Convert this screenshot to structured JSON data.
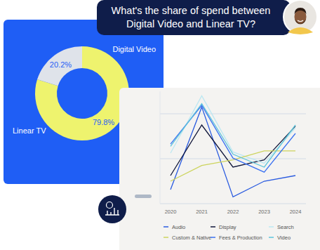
{
  "question": {
    "text_lines": [
      "What's the share of spend between",
      "Digital Video and Linear TV?"
    ]
  },
  "chart_data": [
    {
      "type": "donut",
      "categories": [
        "Digital Video",
        "Linear TV"
      ],
      "values": [
        79.8,
        20.2
      ],
      "value_labels": [
        "79.8%",
        "20.2%"
      ],
      "colors": [
        "#eef36e",
        "#dfe3ea"
      ],
      "data_labels": true
    },
    {
      "type": "line",
      "categories": [
        "2020",
        "2021",
        "2022",
        "2023",
        "2024"
      ],
      "series": [
        {
          "name": "Audio",
          "color": "#2a5be0",
          "values": [
            12.5,
            86,
            6,
            20,
            25
          ]
        },
        {
          "name": "Display",
          "color": "#10163a",
          "values": [
            25,
            70,
            32.5,
            39,
            69
          ]
        },
        {
          "name": "Search",
          "color": "#bde8f2",
          "values": [
            45,
            96,
            46,
            36,
            67.5
          ]
        },
        {
          "name": "Custom & Native",
          "color": "#cdd45e",
          "values": [
            20,
            34,
            39,
            47,
            47
          ]
        },
        {
          "name": "Fees & Production",
          "color": "#3b72f2",
          "values": [
            53,
            87.5,
            40.5,
            28,
            62.5
          ]
        },
        {
          "name": "Video",
          "color": "#5cc4dc",
          "values": [
            51,
            89,
            44,
            32.5,
            70
          ]
        }
      ],
      "ylim": [
        0,
        100
      ],
      "yticks": [
        0,
        40,
        80
      ],
      "grid": true,
      "tick_labels": "x",
      "legend": "bottom"
    }
  ]
}
